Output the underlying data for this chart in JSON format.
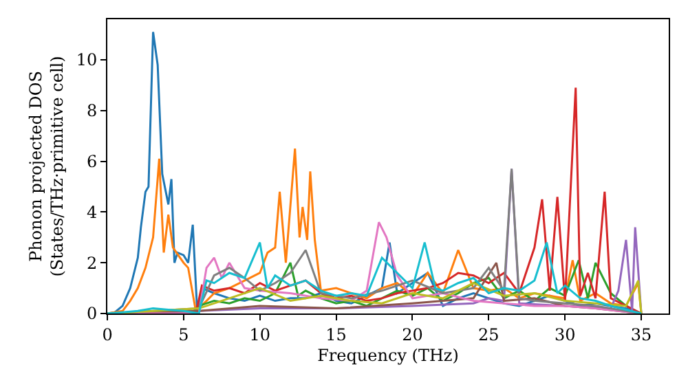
{
  "chart_data": {
    "type": "line",
    "xlabel": "Frequency (THz)",
    "ylabel": "Phonon projected DOS\n(States/THz·primitive cell)",
    "xlim": [
      0,
      36.8
    ],
    "ylim": [
      0,
      11.6
    ],
    "xticks": [
      0,
      5,
      10,
      15,
      20,
      25,
      30,
      35
    ],
    "yticks": [
      0,
      2,
      4,
      6,
      8,
      10
    ],
    "series": [
      {
        "color": "#1f77b4",
        "x": [
          0,
          0.5,
          1,
          1.5,
          2,
          2.2,
          2.5,
          2.7,
          3.0,
          3.3,
          3.6,
          4.0,
          4.2,
          4.4,
          4.6,
          5.0,
          5.3,
          5.6,
          5.9,
          6.2,
          7,
          8,
          9,
          10,
          11,
          12,
          13,
          14,
          15,
          16,
          17,
          18,
          18.5,
          19,
          20,
          21,
          22,
          23,
          24,
          25,
          26,
          27,
          28,
          29,
          30,
          31,
          32,
          33,
          34,
          35
        ],
        "values": [
          0,
          0.05,
          0.3,
          1.0,
          2.2,
          3.4,
          4.8,
          5.0,
          11.1,
          9.8,
          5.5,
          4.3,
          5.3,
          2.0,
          2.4,
          2.3,
          2.0,
          3.5,
          0,
          1.0,
          0.8,
          0.6,
          0.5,
          0.7,
          0.5,
          0.6,
          0.6,
          0.8,
          0.5,
          0.4,
          0.7,
          1.0,
          2.8,
          0.8,
          1.2,
          1.6,
          0.3,
          0.6,
          0.8,
          0.6,
          0.4,
          0.3,
          0.5,
          0.7,
          0.5,
          0.3,
          0.4,
          0.3,
          0.2,
          0
        ]
      },
      {
        "color": "#ff7f0e",
        "x": [
          0,
          1,
          1.5,
          2,
          2.5,
          3,
          3.4,
          3.7,
          4.0,
          4.3,
          5.0,
          5.3,
          5.8,
          6.5,
          7,
          8,
          9,
          10,
          10.5,
          11,
          11.3,
          11.7,
          12.3,
          12.6,
          12.8,
          13.1,
          13.3,
          13.6,
          14,
          15,
          16,
          17,
          18,
          19,
          20,
          21,
          22,
          23,
          24,
          25,
          26,
          27,
          28,
          29,
          30,
          30.5,
          31,
          32,
          33,
          34,
          34.8,
          35
        ],
        "values": [
          0,
          0.1,
          0.5,
          1.0,
          1.8,
          3.0,
          6.1,
          2.4,
          3.9,
          2.6,
          2.0,
          1.8,
          0.1,
          0.5,
          0.8,
          1.0,
          1.3,
          1.6,
          2.4,
          2.6,
          4.8,
          2.0,
          6.5,
          3.0,
          4.2,
          2.9,
          5.6,
          2.9,
          0.9,
          1.0,
          0.8,
          0.6,
          1.0,
          1.2,
          0.7,
          1.6,
          0.8,
          2.5,
          1.0,
          0.9,
          1.0,
          0.6,
          0.8,
          0.7,
          0.6,
          2.1,
          0.5,
          0.8,
          0.4,
          0.3,
          1.2,
          0
        ]
      },
      {
        "color": "#2ca02c",
        "x": [
          0,
          5.5,
          6,
          7,
          8,
          9,
          10,
          11,
          12,
          12.5,
          13,
          14,
          15,
          16,
          17,
          18,
          19,
          20,
          21,
          22,
          23,
          24,
          25,
          26,
          27,
          28,
          29,
          30,
          30.9,
          31.5,
          32,
          33,
          34,
          35
        ],
        "values": [
          0,
          0,
          0.3,
          0.5,
          0.4,
          0.6,
          0.5,
          0.8,
          2.0,
          0.7,
          0.9,
          0.6,
          0.4,
          0.5,
          0.3,
          0.6,
          0.9,
          0.7,
          1.0,
          0.5,
          0.8,
          1.2,
          1.4,
          0.6,
          0.9,
          0.5,
          1.0,
          0.7,
          2.1,
          0.6,
          2.0,
          0.8,
          0.3,
          0
        ]
      },
      {
        "color": "#d62728",
        "x": [
          0,
          5.8,
          6.2,
          7,
          8,
          9,
          10,
          11,
          12,
          13,
          14,
          15,
          16,
          17,
          18,
          19,
          20,
          21,
          22,
          23,
          24,
          25,
          26,
          27,
          28,
          28.5,
          29,
          29.5,
          30,
          30.7,
          31,
          31.5,
          32,
          32.6,
          33,
          34,
          35
        ],
        "values": [
          0,
          0,
          1.1,
          0.9,
          1.0,
          0.8,
          1.2,
          0.9,
          1.1,
          1.3,
          0.8,
          0.6,
          0.7,
          0.5,
          0.6,
          0.8,
          0.9,
          1.0,
          1.2,
          1.6,
          1.5,
          1.2,
          1.6,
          0.8,
          2.6,
          4.5,
          0.9,
          4.6,
          0.5,
          8.9,
          0.7,
          1.6,
          0.6,
          4.8,
          0.6,
          0.3,
          0
        ]
      },
      {
        "color": "#9467bd",
        "x": [
          0,
          6,
          10,
          15,
          20,
          24,
          25,
          26,
          26.5,
          27,
          30,
          33,
          33.5,
          34,
          34.4,
          34.6,
          35
        ],
        "values": [
          0,
          0.1,
          0.2,
          0.2,
          0.3,
          0.4,
          0.6,
          0.5,
          5.7,
          0.4,
          0.3,
          0.2,
          0.9,
          2.9,
          0.1,
          3.4,
          0
        ]
      },
      {
        "color": "#8c564b",
        "x": [
          0,
          6,
          10,
          15,
          20,
          24,
          25.5,
          26,
          28,
          30,
          32,
          35
        ],
        "values": [
          0,
          0.1,
          0.3,
          0.2,
          0.4,
          0.6,
          2.0,
          0.5,
          0.6,
          0.3,
          0.2,
          0
        ]
      },
      {
        "color": "#e377c2",
        "x": [
          0,
          6,
          6.5,
          7,
          7.5,
          8,
          9,
          10,
          12,
          14,
          16,
          17,
          17.8,
          18.3,
          19,
          20,
          22,
          24,
          26,
          28,
          30,
          32,
          35
        ],
        "values": [
          0,
          0,
          1.8,
          2.2,
          1.4,
          2.0,
          1.0,
          0.9,
          0.8,
          0.6,
          0.5,
          0.9,
          3.6,
          3.0,
          1.5,
          0.6,
          0.8,
          0.5,
          0.4,
          0.3,
          0.3,
          0.2,
          0
        ]
      },
      {
        "color": "#7f7f7f",
        "x": [
          0,
          6,
          7,
          8,
          9,
          10,
          11,
          12,
          13,
          14,
          16,
          18,
          20,
          22,
          24,
          25,
          26,
          26.5,
          27,
          28,
          30,
          32,
          35
        ],
        "values": [
          0,
          0.2,
          1.5,
          1.8,
          1.4,
          0.9,
          1.2,
          1.6,
          2.5,
          0.8,
          0.6,
          0.9,
          1.3,
          0.8,
          1.0,
          1.8,
          0.9,
          5.7,
          0.6,
          0.5,
          0.4,
          0.3,
          0
        ]
      },
      {
        "color": "#bcbd22",
        "x": [
          0,
          6,
          8,
          10,
          12,
          14,
          16,
          18,
          20,
          22,
          24,
          26,
          28,
          30,
          32,
          34,
          34.8,
          35
        ],
        "values": [
          0,
          0.2,
          0.6,
          1.0,
          0.5,
          0.7,
          0.5,
          0.4,
          0.8,
          0.6,
          1.2,
          0.7,
          0.8,
          0.5,
          0.4,
          0.3,
          1.3,
          0
        ]
      },
      {
        "color": "#17becf",
        "x": [
          0,
          1,
          2,
          3,
          4,
          5,
          6,
          6.5,
          7,
          8,
          9,
          10,
          10.5,
          11,
          12,
          13,
          14,
          15,
          16,
          17,
          18,
          19,
          20,
          20.8,
          21.5,
          22,
          23,
          24,
          25,
          26,
          27,
          28,
          28.8,
          29.5,
          30,
          31,
          32,
          33,
          35
        ],
        "values": [
          0,
          0.05,
          0.1,
          0.2,
          0.15,
          0.1,
          0,
          1.3,
          1.2,
          1.6,
          1.4,
          2.8,
          1.0,
          1.5,
          1.1,
          1.3,
          0.9,
          0.7,
          0.8,
          0.7,
          2.2,
          1.6,
          1.0,
          2.8,
          1.0,
          0.9,
          1.2,
          1.4,
          0.8,
          1.0,
          0.9,
          1.3,
          2.8,
          0.8,
          1.1,
          0.6,
          0.5,
          0.3,
          0
        ]
      }
    ]
  }
}
